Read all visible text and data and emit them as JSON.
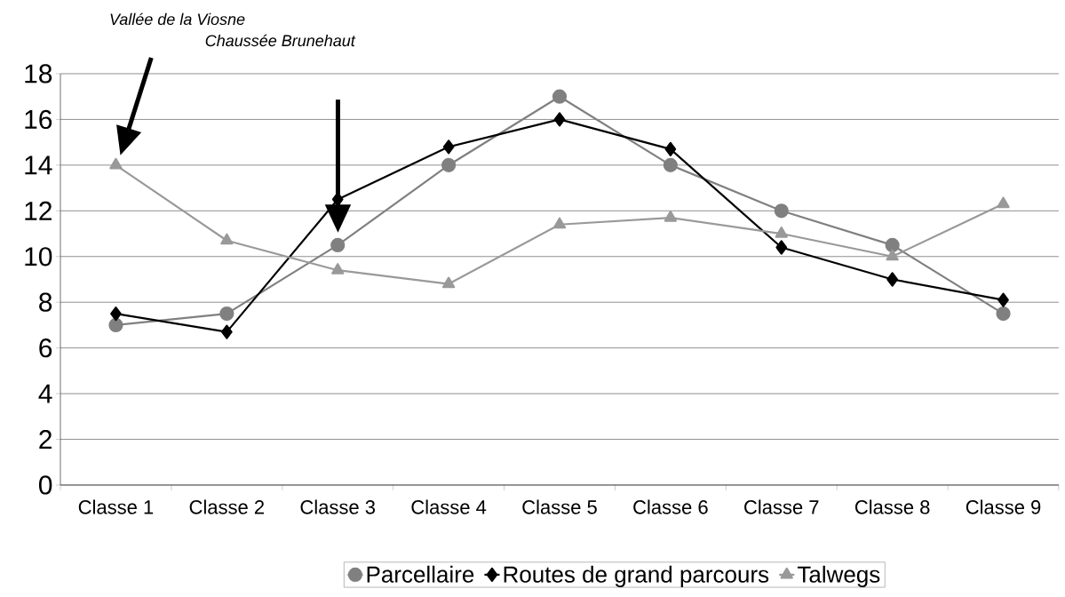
{
  "chart_data": {
    "type": "line",
    "categories": [
      "Classe 1",
      "Classe 2",
      "Classe 3",
      "Classe 4",
      "Classe 5",
      "Classe 6",
      "Classe 7",
      "Classe 8",
      "Classe 9"
    ],
    "series": [
      {
        "name": "Parcellaire",
        "color": "#808080",
        "marker": "circle",
        "values": [
          7.0,
          7.5,
          10.5,
          14.0,
          17.0,
          14.0,
          12.0,
          10.5,
          7.5
        ]
      },
      {
        "name": "Routes de grand parcours",
        "color": "#000000",
        "marker": "diamond",
        "values": [
          7.5,
          6.7,
          12.5,
          14.8,
          16.0,
          14.7,
          10.4,
          9.0,
          8.1
        ]
      },
      {
        "name": "Talwegs",
        "color": "#999999",
        "marker": "triangle",
        "values": [
          14.0,
          10.7,
          9.4,
          8.8,
          11.4,
          11.7,
          11.0,
          10.0,
          12.3
        ]
      }
    ],
    "ylim": [
      0,
      18
    ],
    "yticks": [
      0,
      2,
      4,
      6,
      8,
      10,
      12,
      14,
      16,
      18
    ],
    "grid": "y",
    "legend": "bottom",
    "annotations": [
      "Vallée de  la Viosne",
      "Chaussée Brunehaut"
    ]
  }
}
